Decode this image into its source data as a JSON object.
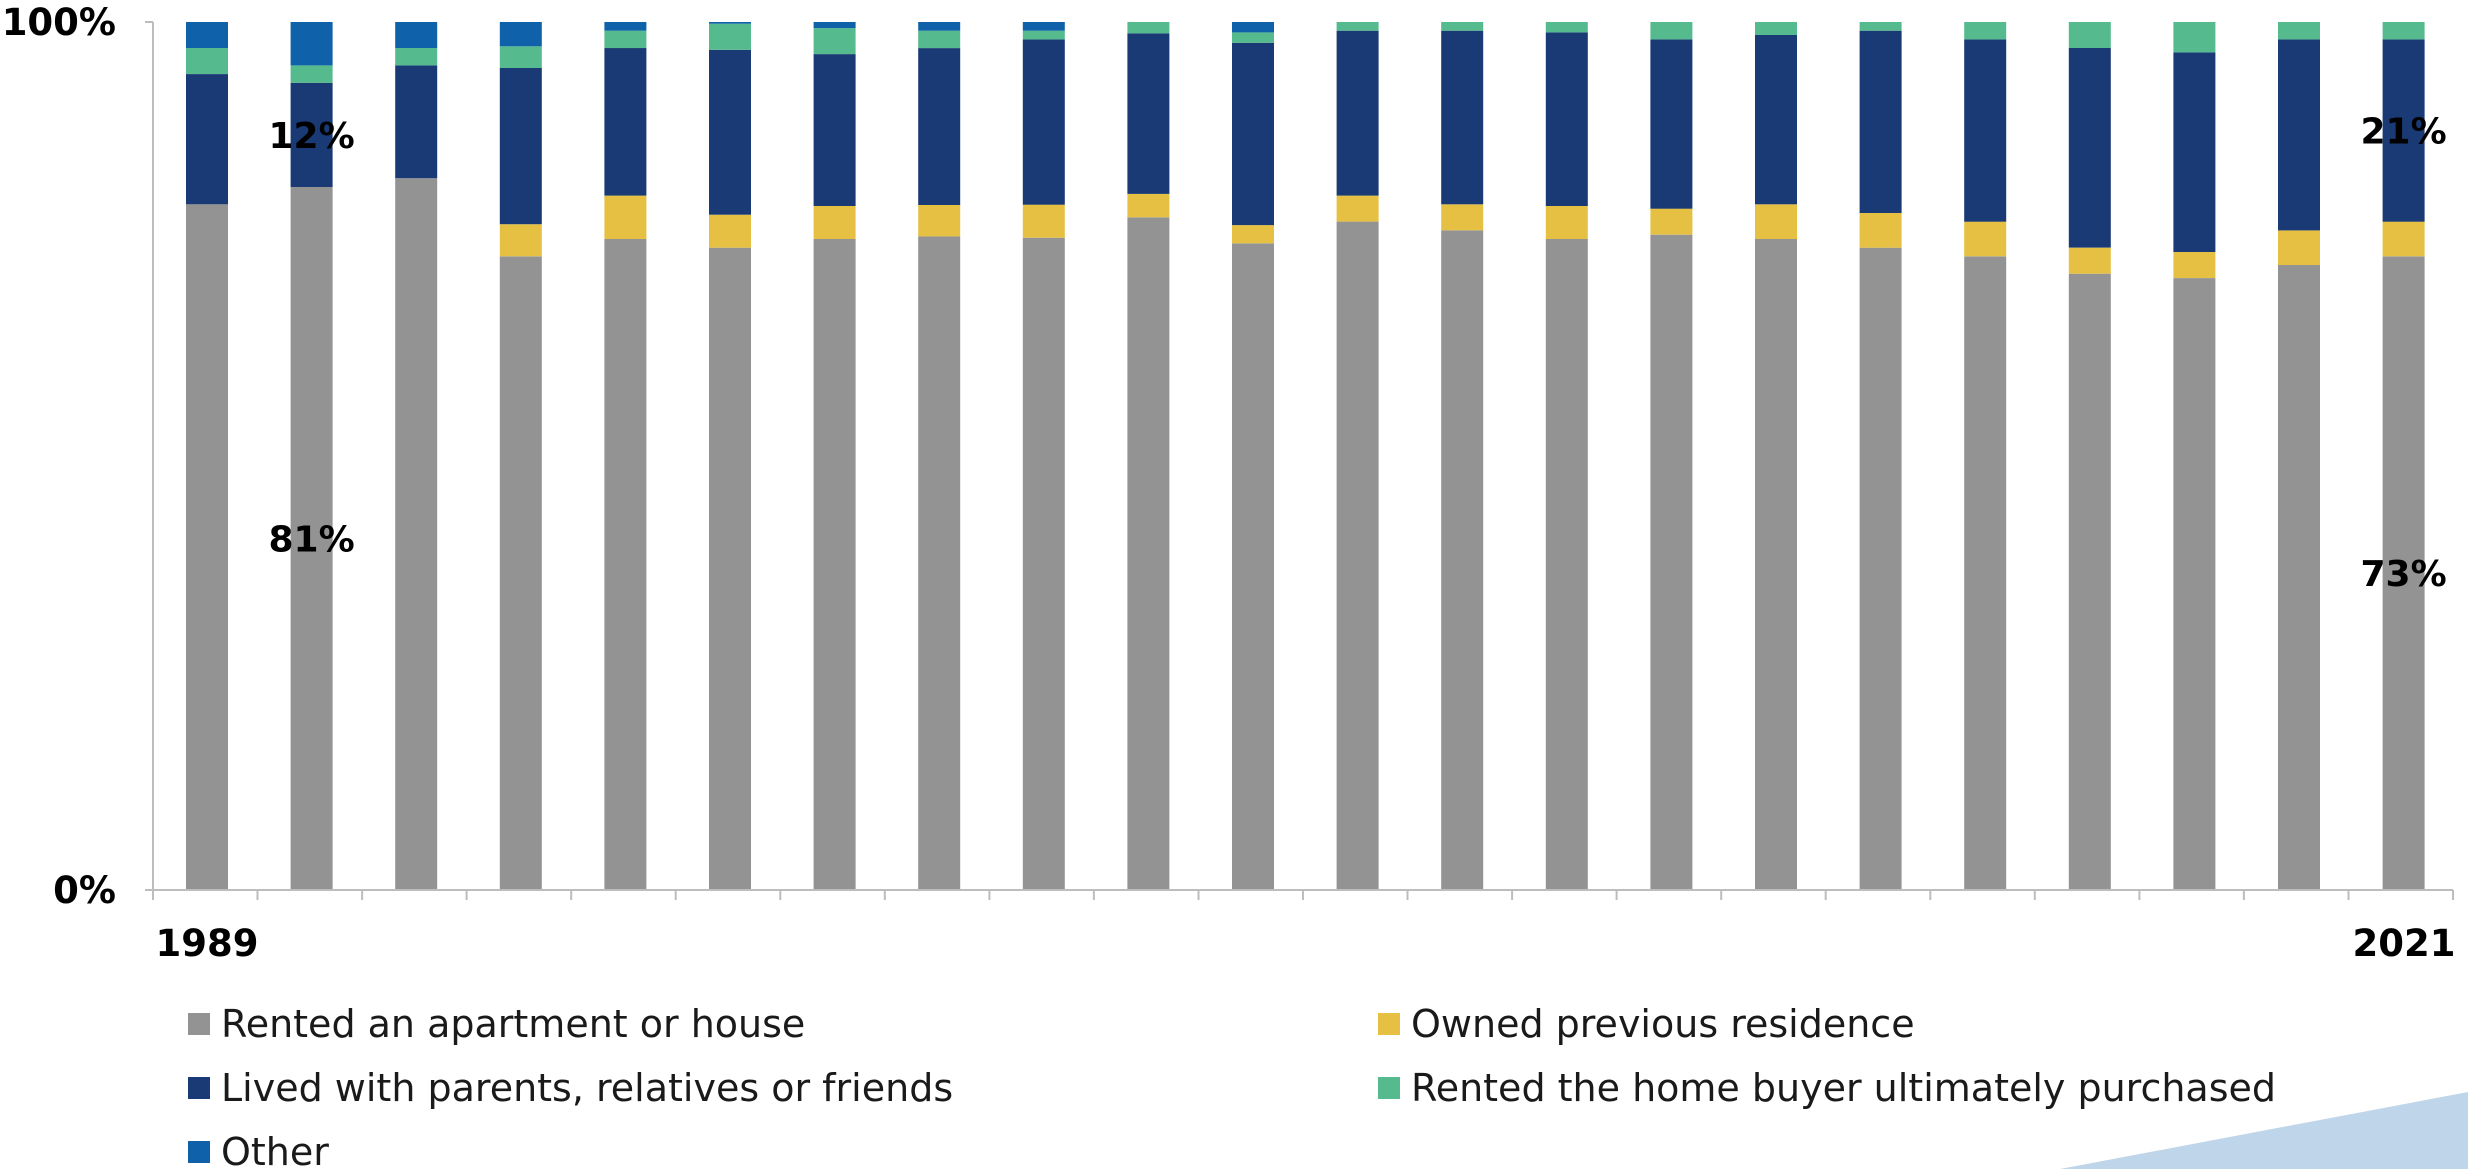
{
  "chart_data": {
    "type": "bar",
    "stacked": true,
    "percent_stacked": true,
    "title": "",
    "xlabel": "",
    "ylabel": "",
    "ylim": [
      0,
      100
    ],
    "y_ticks": [
      "0%",
      "100%"
    ],
    "x_tick_labels": {
      "first": "1989",
      "last": "2021"
    },
    "bar_count": 22,
    "grid": false,
    "legend_position": "bottom",
    "series": [
      {
        "name": "Rented an apartment or house",
        "color": "#939393",
        "values": [
          79,
          81,
          82,
          73,
          75,
          74,
          75,
          75,
          75,
          77.5,
          74.5,
          77,
          76,
          75,
          75.5,
          75,
          74,
          73,
          71,
          70.5,
          72,
          73
        ]
      },
      {
        "name": "Owned previous residence",
        "color": "#E5C043",
        "values": [
          0,
          0,
          0,
          3.7,
          5,
          3.8,
          3.8,
          3.6,
          3.8,
          2.7,
          2.1,
          3,
          3,
          3.8,
          3,
          4,
          4,
          4,
          3,
          3,
          4,
          4
        ]
      },
      {
        "name": "Lived with parents, relatives or friends",
        "color": "#193A75",
        "values": [
          15,
          12,
          13,
          18,
          17,
          19,
          17.5,
          18,
          19,
          18.5,
          21,
          19,
          20,
          20,
          19.5,
          19.5,
          21,
          21,
          23,
          23,
          22,
          21
        ]
      },
      {
        "name": "Rented the home buyer ultimately purchased",
        "color": "#55BA8D",
        "values": [
          3,
          2,
          2,
          2.5,
          2,
          3,
          3,
          2,
          1,
          1.3,
          1.2,
          1,
          1,
          1.2,
          2,
          1.5,
          1,
          2,
          3,
          3.5,
          2,
          2
        ]
      },
      {
        "name": "Other",
        "color": "#0F61A9",
        "values": [
          3,
          5,
          3,
          2.8,
          1,
          0.2,
          0.7,
          1,
          1,
          0,
          1.2,
          0,
          0,
          0,
          0,
          0,
          0,
          0,
          0,
          0,
          0,
          0
        ]
      }
    ],
    "annotations": [
      {
        "text": "81%",
        "bar": 1,
        "series": 0,
        "at": "center"
      },
      {
        "text": "12%",
        "bar": 1,
        "series": 2,
        "at": "center"
      },
      {
        "text": "73%",
        "bar": 21,
        "series": 0,
        "at": "center"
      },
      {
        "text": "21%",
        "bar": 21,
        "series": 2,
        "at": "center"
      }
    ]
  },
  "decoration": {
    "corner_shape_color": "#BFD6EA"
  }
}
